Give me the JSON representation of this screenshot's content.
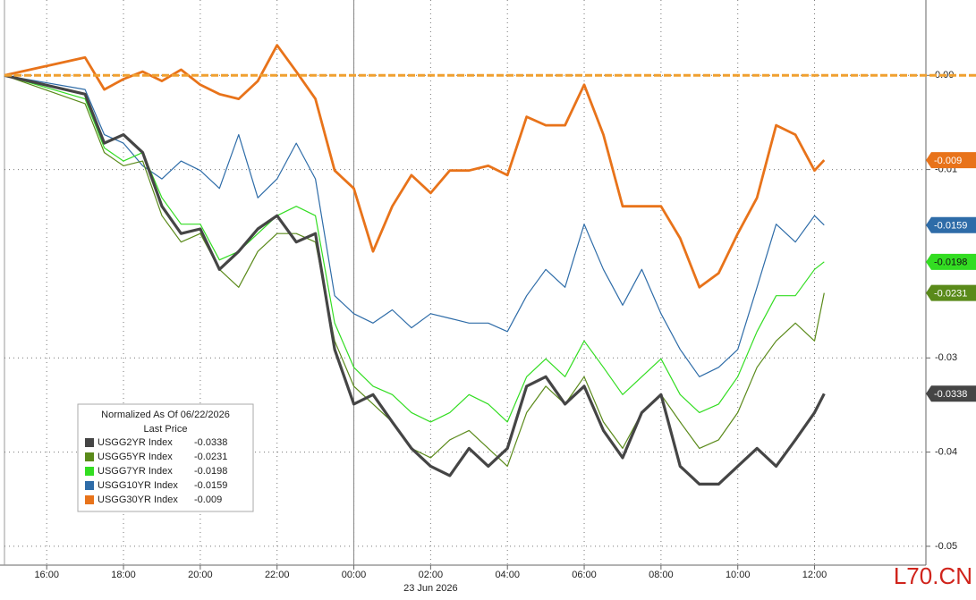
{
  "chart_data": {
    "type": "line",
    "legend_title": "Normalized As Of 06/22/2026",
    "legend_subtitle": "Last Price",
    "legend": "lower left",
    "date_label": "23 Jun 2026",
    "watermark": "L70.CN",
    "hline": {
      "value": 0,
      "color": "#f0a030"
    },
    "separator": 8,
    "grid": true,
    "xlim": [
      -1.1,
      22.9
    ],
    "xticks": [
      {
        "value": 0,
        "label": "16:00"
      },
      {
        "value": 2,
        "label": "18:00"
      },
      {
        "value": 4,
        "label": "20:00"
      },
      {
        "value": 6,
        "label": "22:00"
      },
      {
        "value": 8,
        "label": "00:00"
      },
      {
        "value": 10,
        "label": "02:00"
      },
      {
        "value": 12,
        "label": "04:00"
      },
      {
        "value": 14,
        "label": "06:00"
      },
      {
        "value": 16,
        "label": "08:00"
      },
      {
        "value": 18,
        "label": "10:00"
      },
      {
        "value": 20,
        "label": "12:00"
      }
    ],
    "ylim": [
      -0.052,
      0.008
    ],
    "yticks": [
      {
        "value": 0,
        "label": "0.00"
      },
      -0.01,
      -0.03,
      -0.04,
      -0.05
    ],
    "x": [
      -1.1,
      1,
      1.5,
      2,
      2.5,
      3,
      3.5,
      4,
      4.5,
      5,
      5.5,
      6,
      6.5,
      7,
      7.5,
      8,
      8.5,
      9,
      9.5,
      10,
      10.5,
      11,
      11.5,
      12,
      12.5,
      13,
      13.5,
      14,
      14.5,
      15,
      15.5,
      16,
      16.5,
      17,
      17.5,
      18,
      18.5,
      19,
      19.5,
      20,
      20.25
    ],
    "series": [
      {
        "name": "USGG2YR Index",
        "color": "#454545",
        "values": [
          0,
          -0.002,
          -0.0072,
          -0.0063,
          -0.0082,
          -0.0139,
          -0.0168,
          -0.0163,
          -0.0206,
          -0.0187,
          -0.0163,
          -0.0149,
          -0.0177,
          -0.0168,
          -0.0291,
          -0.0349,
          -0.0339,
          -0.0368,
          -0.0396,
          -0.0415,
          -0.0425,
          -0.0396,
          -0.0415,
          -0.0396,
          -0.033,
          -0.032,
          -0.0349,
          -0.033,
          -0.0377,
          -0.0406,
          -0.0358,
          -0.0339,
          -0.0415,
          -0.0434,
          -0.0434,
          -0.0415,
          -0.0396,
          -0.0415,
          -0.0387,
          -0.0358,
          -0.0338
        ]
      },
      {
        "name": "USGG5YR Index",
        "color": "#5a8a1a",
        "values": [
          0,
          -0.003,
          -0.0082,
          -0.0096,
          -0.0091,
          -0.0149,
          -0.0177,
          -0.0168,
          -0.0206,
          -0.0225,
          -0.0187,
          -0.0168,
          -0.0168,
          -0.0177,
          -0.0282,
          -0.033,
          -0.0349,
          -0.0368,
          -0.0396,
          -0.0406,
          -0.0387,
          -0.0377,
          -0.0396,
          -0.0415,
          -0.0358,
          -0.033,
          -0.0349,
          -0.032,
          -0.0368,
          -0.0396,
          -0.0358,
          -0.0339,
          -0.0368,
          -0.0396,
          -0.0387,
          -0.0358,
          -0.031,
          -0.0282,
          -0.0263,
          -0.0282,
          -0.0231
        ]
      },
      {
        "name": "USGG7YR Index",
        "color": "#33dd22",
        "values": [
          0,
          -0.0025,
          -0.0077,
          -0.0091,
          -0.0082,
          -0.013,
          -0.0158,
          -0.0158,
          -0.0196,
          -0.0187,
          -0.0168,
          -0.0149,
          -0.0139,
          -0.0149,
          -0.0263,
          -0.031,
          -0.033,
          -0.0339,
          -0.0358,
          -0.0368,
          -0.0358,
          -0.0339,
          -0.0349,
          -0.0368,
          -0.032,
          -0.0301,
          -0.032,
          -0.0282,
          -0.031,
          -0.0339,
          -0.032,
          -0.0301,
          -0.0339,
          -0.0358,
          -0.0349,
          -0.032,
          -0.0272,
          -0.0234,
          -0.0234,
          -0.0206,
          -0.0198
        ]
      },
      {
        "name": "USGG10YR Index",
        "color": "#2e6ca8",
        "values": [
          0,
          -0.0015,
          -0.0063,
          -0.0072,
          -0.0096,
          -0.011,
          -0.0091,
          -0.0101,
          -0.012,
          -0.0063,
          -0.013,
          -0.011,
          -0.0072,
          -0.011,
          -0.0234,
          -0.0253,
          -0.0263,
          -0.0249,
          -0.0268,
          -0.0253,
          -0.0258,
          -0.0263,
          -0.0263,
          -0.0272,
          -0.0234,
          -0.0206,
          -0.0225,
          -0.0158,
          -0.0206,
          -0.0244,
          -0.0206,
          -0.0253,
          -0.0291,
          -0.032,
          -0.031,
          -0.0291,
          -0.0225,
          -0.0158,
          -0.0177,
          -0.0149,
          -0.0159
        ]
      },
      {
        "name": "USGG30YR Index",
        "color": "#e8731a",
        "values": [
          0,
          0.0019,
          -0.0015,
          -0.0004,
          0.0004,
          -0.0006,
          0.0006,
          -0.001,
          -0.002,
          -0.0025,
          -0.0006,
          0.0032,
          0.0004,
          -0.0025,
          -0.0101,
          -0.012,
          -0.0187,
          -0.0139,
          -0.0106,
          -0.0125,
          -0.0101,
          -0.0101,
          -0.0096,
          -0.0106,
          -0.0044,
          -0.0053,
          -0.0053,
          -0.001,
          -0.0063,
          -0.0139,
          -0.0139,
          -0.0139,
          -0.0173,
          -0.0225,
          -0.021,
          -0.0168,
          -0.013,
          -0.0053,
          -0.0063,
          -0.0101,
          -0.009
        ]
      }
    ]
  }
}
